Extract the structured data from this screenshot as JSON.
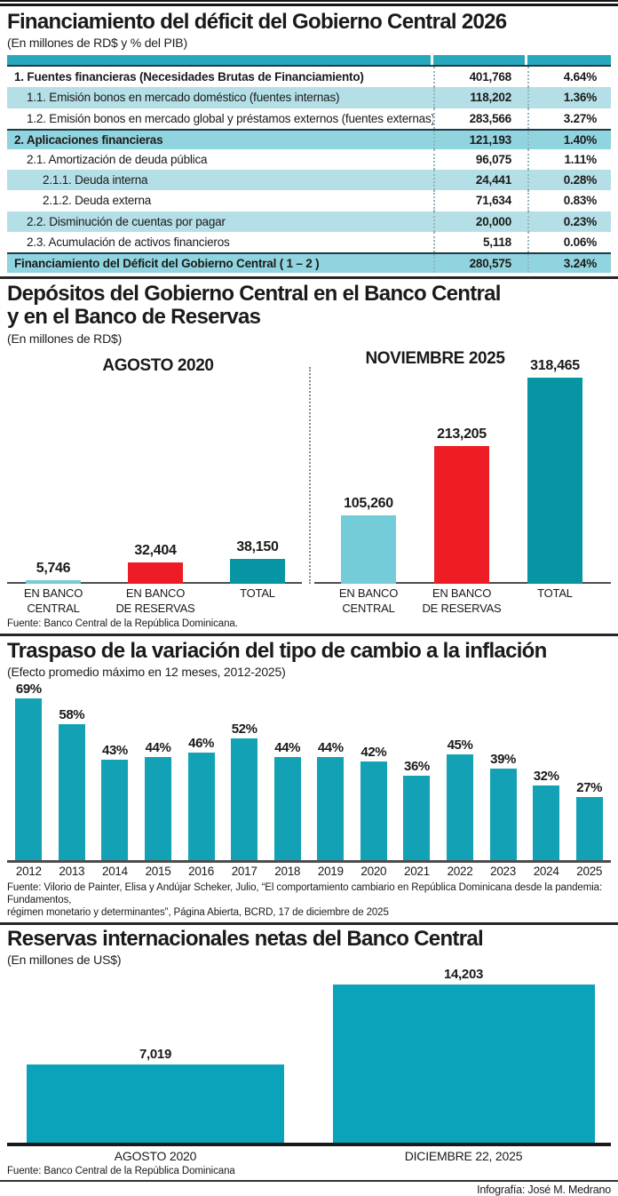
{
  "palette": {
    "header_strip": "#28a8bc",
    "row_light": "#b5dfe7",
    "row_medium": "#90d4df",
    "row_white": "#ffffff",
    "bar_light_cyan": "#74ccd9",
    "bar_red": "#ee1c24",
    "bar_dark_teal": "#0895a3",
    "bar_teal_passthrough": "#12a1b5",
    "bar_teal_reserves": "#0aa3b9"
  },
  "credit": "Infografía: José M. Medrano",
  "sections": {
    "financiamiento": {
      "title": "Financiamiento del déficit del Gobierno Central 2026",
      "subtitle": "(En millones de RD$ y % del PIB)",
      "table": {
        "rows": [
          {
            "label": "1. Fuentes financieras (Necesidades Brutas de Financiamiento)",
            "value": "401,768",
            "pct": "4.64%",
            "bold": true,
            "indent": 0,
            "bg": "white",
            "topline": false
          },
          {
            "label": "1.1. Emisión bonos en mercado doméstico (fuentes internas)",
            "value": "118,202",
            "pct": "1.36%",
            "bold": false,
            "indent": 1,
            "bg": "light",
            "topline": false
          },
          {
            "label": "1.2. Emisión bonos en mercado global y préstamos externos (fuentes externas)",
            "value": "283,566",
            "pct": "3.27%",
            "bold": false,
            "indent": 1,
            "bg": "white",
            "topline": false
          },
          {
            "label": "2. Aplicaciones financieras",
            "value": "121,193",
            "pct": "1.40%",
            "bold": true,
            "indent": 0,
            "bg": "med",
            "topline": true
          },
          {
            "label": "2.1. Amortización de deuda pública",
            "value": "96,075",
            "pct": "1.11%",
            "bold": false,
            "indent": 1,
            "bg": "white",
            "topline": false
          },
          {
            "label": "2.1.1. Deuda interna",
            "value": "24,441",
            "pct": "0.28%",
            "bold": false,
            "indent": 2,
            "bg": "light",
            "topline": false
          },
          {
            "label": "2.1.2. Deuda externa",
            "value": "71,634",
            "pct": "0.83%",
            "bold": false,
            "indent": 2,
            "bg": "white",
            "topline": false
          },
          {
            "label": "2.2. Disminución de cuentas por pagar",
            "value": "20,000",
            "pct": "0.23%",
            "bold": false,
            "indent": 1,
            "bg": "light",
            "topline": false
          },
          {
            "label": "2.3. Acumulación de activos financieros",
            "value": "5,118",
            "pct": "0.06%",
            "bold": false,
            "indent": 1,
            "bg": "white",
            "topline": false
          },
          {
            "label": "Financiamiento del Déficit del Gobierno Central ( 1 – 2 )",
            "value": "280,575",
            "pct": "3.24%",
            "bold": true,
            "indent": 0,
            "bg": "med",
            "topline": true
          }
        ]
      }
    },
    "depositos": {
      "title_line1": "Depósitos del Gobierno Central en el Banco Central",
      "title_line2": "y en el Banco de Reservas",
      "subtitle": "(En millones de RD$)",
      "source": "Fuente: Banco Central de la República Dominicana."
    },
    "traspaso": {
      "title": "Traspaso de la variación del tipo de cambio a la inflación",
      "subtitle": "(Efecto promedio máximo en 12 meses, 2012-2025)",
      "source_line1": "Fuente: Vilorio de Painter, Elisa y Andújar Scheker, Julio, “El comportamiento cambiario en República Dominicana desde la pandemia: Fundamentos,",
      "source_line2": "régimen monetario y determinantes”, Página Abierta, BCRD, 17 de diciembre de 2025"
    },
    "reservas": {
      "title": "Reservas internacionales netas del Banco Central",
      "subtitle": "(En millones de US$)",
      "source": "Fuente: Banco Central de la República Dominicana"
    }
  },
  "chart_data": [
    {
      "id": "depositos-gobierno-central",
      "type": "bar",
      "title": "Depósitos del Gobierno Central en el Banco Central y en el Banco de Reservas",
      "unit": "millones de RD$",
      "categories": [
        [
          "EN BANCO",
          "CENTRAL"
        ],
        [
          "EN BANCO",
          "DE RESERVAS"
        ],
        [
          "TOTAL"
        ]
      ],
      "groups": [
        {
          "label": "AGOSTO 2020",
          "values": [
            5746,
            32404,
            38150
          ],
          "value_labels": [
            "5,746",
            "32,404",
            "38,150"
          ]
        },
        {
          "label": "NOVIEMBRE 2025",
          "values": [
            105260,
            213205,
            318465
          ],
          "value_labels": [
            "105,260",
            "213,205",
            "318,465"
          ]
        }
      ],
      "colors": [
        "#74ccd9",
        "#ee1c24",
        "#0895a3"
      ],
      "ylim": [
        0,
        318465
      ],
      "grid": false,
      "legend": "none"
    },
    {
      "id": "traspaso-tipo-cambio-inflacion",
      "type": "bar",
      "title": "Traspaso de la variación del tipo de cambio a la inflación",
      "unit": "%",
      "categories": [
        "2012",
        "2013",
        "2014",
        "2015",
        "2016",
        "2017",
        "2018",
        "2019",
        "2020",
        "2021",
        "2022",
        "2023",
        "2024",
        "2025"
      ],
      "values": [
        69,
        58,
        43,
        44,
        46,
        52,
        44,
        44,
        42,
        36,
        45,
        39,
        32,
        27
      ],
      "value_labels": [
        "69%",
        "58%",
        "43%",
        "44%",
        "46%",
        "52%",
        "44%",
        "44%",
        "42%",
        "36%",
        "45%",
        "39%",
        "32%",
        "27%"
      ],
      "color": "#12a1b5",
      "ylim": [
        0,
        69
      ],
      "grid": false,
      "legend": "none"
    },
    {
      "id": "reservas-internacionales-netas",
      "type": "bar",
      "title": "Reservas internacionales netas del Banco Central",
      "unit": "millones de US$",
      "categories": [
        "AGOSTO 2020",
        "DICIEMBRE 22, 2025"
      ],
      "values": [
        7019,
        14203
      ],
      "value_labels": [
        "7,019",
        "14,203"
      ],
      "color": "#0aa3b9",
      "ylim": [
        0,
        14203
      ],
      "grid": false,
      "legend": "none"
    }
  ]
}
